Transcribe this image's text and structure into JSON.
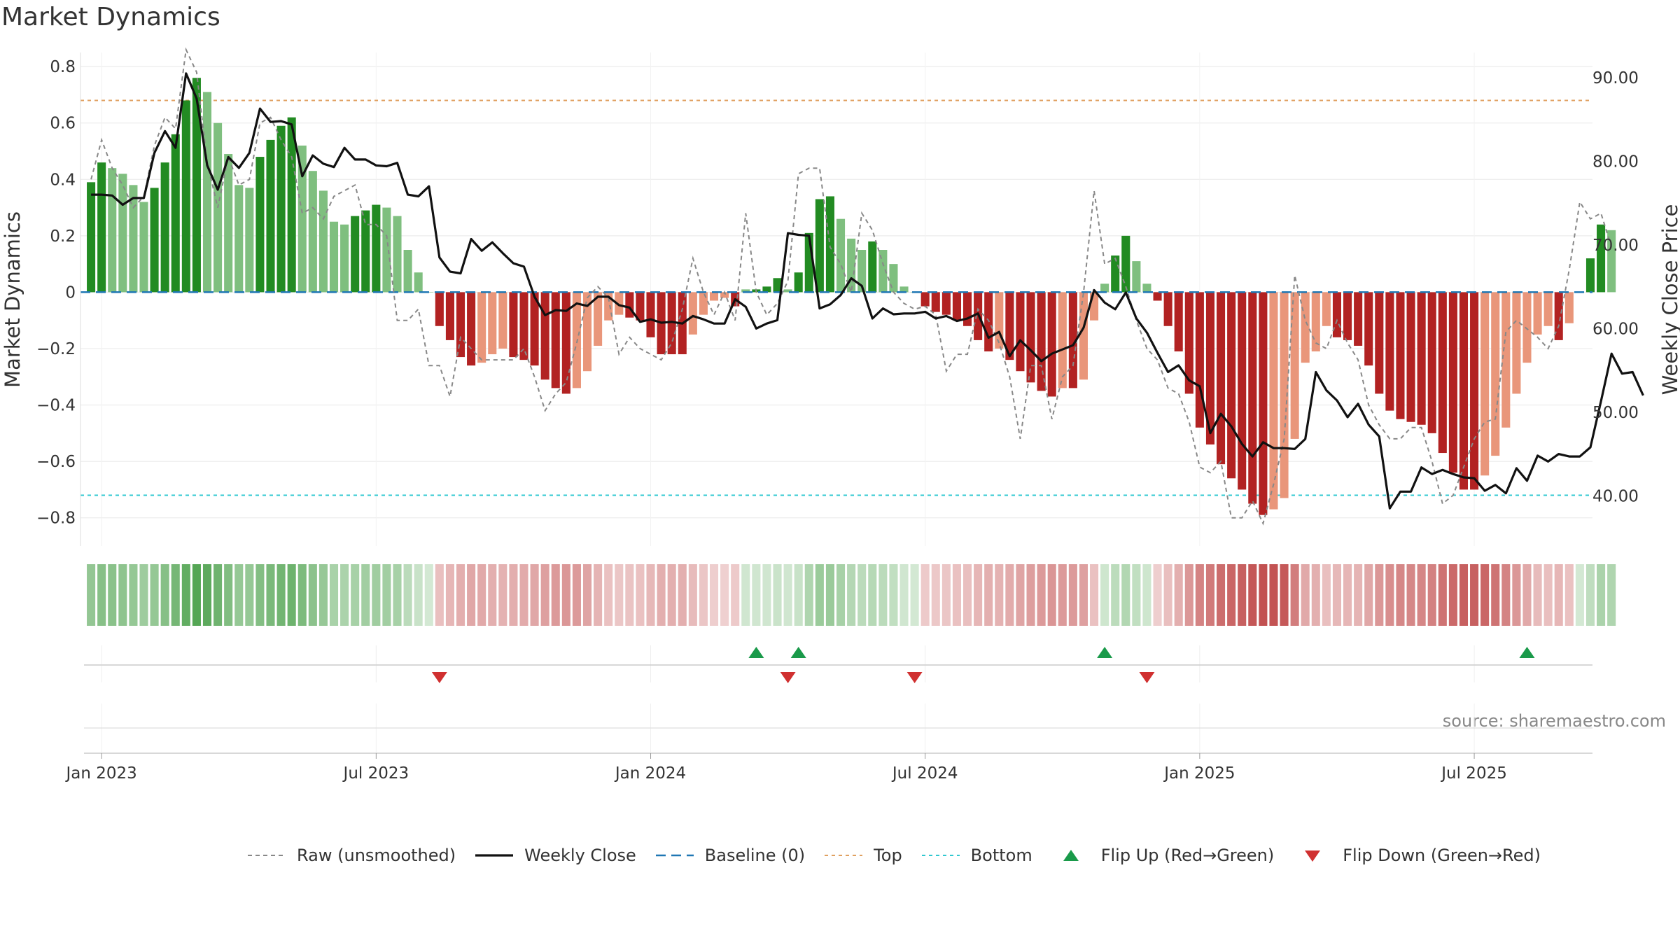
{
  "title": "Market Dynamics",
  "source": "source: sharemaestro.com",
  "chart_data": {
    "type": "bar",
    "title": "Market Dynamics",
    "ylabel": "Market Dynamics",
    "y2label": "Weekly Close Price",
    "ylim": [
      -0.9,
      0.85
    ],
    "y2lim": [
      34,
      93
    ],
    "yticks": [
      "0.8",
      "0.6",
      "0.4",
      "0.2",
      "0",
      "−0.2",
      "−0.4",
      "−0.6",
      "−0.8"
    ],
    "ytick_values": [
      0.8,
      0.6,
      0.4,
      0.2,
      0,
      -0.2,
      -0.4,
      -0.6,
      -0.8
    ],
    "y2ticks": [
      "90.00",
      "80.00",
      "70.00",
      "60.00",
      "50.00",
      "40.00"
    ],
    "y2tick_values": [
      90,
      80,
      70,
      60,
      50,
      40
    ],
    "xticks": [
      {
        "label": "Jan 2023",
        "week": 1
      },
      {
        "label": "Jul 2023",
        "week": 27
      },
      {
        "label": "Jan 2024",
        "week": 53
      },
      {
        "label": "Jul 2024",
        "week": 79
      },
      {
        "label": "Jan 2025",
        "week": 105
      },
      {
        "label": "Jul 2025",
        "week": 131
      }
    ],
    "x_start_week": -1,
    "x_end_week": 142.2,
    "top_threshold": 0.68,
    "bottom_threshold": -0.72,
    "baseline": 0,
    "momentum": [
      0.39,
      0.46,
      0.44,
      0.42,
      0.38,
      0.32,
      0.37,
      0.46,
      0.56,
      0.68,
      0.76,
      0.71,
      0.6,
      0.49,
      0.38,
      0.37,
      0.48,
      0.54,
      0.59,
      0.62,
      0.52,
      0.43,
      0.36,
      0.25,
      0.24,
      0.27,
      0.29,
      0.31,
      0.3,
      0.27,
      0.15,
      0.07,
      0.0,
      -0.12,
      -0.17,
      -0.23,
      -0.26,
      -0.25,
      -0.22,
      -0.2,
      -0.23,
      -0.24,
      -0.26,
      -0.31,
      -0.34,
      -0.36,
      -0.34,
      -0.28,
      -0.19,
      -0.1,
      -0.08,
      -0.09,
      -0.1,
      -0.16,
      -0.22,
      -0.22,
      -0.22,
      -0.15,
      -0.08,
      -0.03,
      -0.02,
      -0.05,
      0.01,
      0.01,
      0.02,
      0.05,
      0.01,
      0.07,
      0.21,
      0.33,
      0.34,
      0.26,
      0.19,
      0.15,
      0.18,
      0.15,
      0.1,
      0.02,
      0.0,
      -0.05,
      -0.07,
      -0.08,
      -0.1,
      -0.12,
      -0.17,
      -0.21,
      -0.2,
      -0.24,
      -0.28,
      -0.32,
      -0.35,
      -0.37,
      -0.34,
      -0.34,
      -0.31,
      -0.1,
      0.03,
      0.13,
      0.2,
      0.11,
      0.03,
      -0.03,
      -0.12,
      -0.21,
      -0.36,
      -0.48,
      -0.54,
      -0.61,
      -0.66,
      -0.7,
      -0.75,
      -0.79,
      -0.77,
      -0.73,
      -0.52,
      -0.25,
      -0.21,
      -0.12,
      -0.16,
      -0.17,
      -0.19,
      -0.26,
      -0.36,
      -0.42,
      -0.45,
      -0.46,
      -0.47,
      -0.5,
      -0.57,
      -0.64,
      -0.7,
      -0.7,
      -0.65,
      -0.58,
      -0.48,
      -0.36,
      -0.25,
      -0.15,
      -0.12,
      -0.17,
      -0.11,
      0.0,
      0.12,
      0.24,
      0.22
    ],
    "raw": [
      0.4,
      0.54,
      0.44,
      0.38,
      0.3,
      0.34,
      0.52,
      0.62,
      0.58,
      0.86,
      0.78,
      0.46,
      0.3,
      0.48,
      0.38,
      0.4,
      0.6,
      0.62,
      0.54,
      0.48,
      0.28,
      0.3,
      0.26,
      0.34,
      0.36,
      0.38,
      0.24,
      0.24,
      0.2,
      -0.1,
      -0.1,
      -0.06,
      -0.26,
      -0.26,
      -0.37,
      -0.16,
      -0.2,
      -0.24,
      -0.24,
      -0.24,
      -0.24,
      -0.2,
      -0.3,
      -0.42,
      -0.36,
      -0.32,
      -0.18,
      -0.02,
      0.02,
      -0.02,
      -0.22,
      -0.16,
      -0.2,
      -0.22,
      -0.24,
      -0.18,
      -0.06,
      0.12,
      0.0,
      -0.08,
      0.0,
      -0.1,
      0.28,
      0.0,
      -0.08,
      -0.04,
      0.04,
      0.42,
      0.44,
      0.44,
      0.16,
      0.1,
      0.0,
      0.28,
      0.22,
      0.1,
      0.0,
      -0.04,
      -0.06,
      -0.05,
      -0.08,
      -0.28,
      -0.22,
      -0.22,
      -0.06,
      -0.1,
      -0.18,
      -0.3,
      -0.52,
      -0.26,
      -0.26,
      -0.45,
      -0.3,
      -0.26,
      0.0,
      0.36,
      0.1,
      0.12,
      0.02,
      -0.1,
      -0.2,
      -0.24,
      -0.34,
      -0.36,
      -0.46,
      -0.62,
      -0.64,
      -0.6,
      -0.8,
      -0.8,
      -0.74,
      -0.82,
      -0.68,
      -0.52,
      0.06,
      -0.1,
      -0.18,
      -0.2,
      -0.1,
      -0.18,
      -0.24,
      -0.4,
      -0.47,
      -0.52,
      -0.52,
      -0.48,
      -0.48,
      -0.6,
      -0.75,
      -0.72,
      -0.62,
      -0.52,
      -0.46,
      -0.45,
      -0.14,
      -0.1,
      -0.13,
      -0.16,
      -0.2,
      -0.12,
      0.08,
      0.32,
      0.26,
      0.28,
      0.16
    ],
    "close": [
      76,
      76,
      75.9,
      74.8,
      75.6,
      75.6,
      81,
      83.6,
      81.6,
      90.5,
      87.5,
      79.5,
      76.6,
      80.5,
      79.2,
      81,
      86.3,
      84.7,
      84.8,
      84.4,
      78.2,
      80.7,
      79.7,
      79.3,
      81.6,
      80.2,
      80.2,
      79.5,
      79.4,
      79.8,
      76,
      75.8,
      77,
      68.5,
      66.8,
      66.6,
      70.7,
      69.3,
      70.3,
      69,
      67.8,
      67.4,
      63.8,
      61.6,
      62.2,
      62.1,
      63,
      62.7,
      63.8,
      63.8,
      62.8,
      62.5,
      60.8,
      61.1,
      60.7,
      60.8,
      60.6,
      61.5,
      61.1,
      60.6,
      60.6,
      63.5,
      62.6,
      60,
      60.6,
      61,
      71.4,
      71.2,
      71.1,
      62.4,
      62.9,
      64,
      66,
      65.1,
      61.2,
      62.4,
      61.7,
      61.8,
      61.8,
      62,
      61.2,
      61.5,
      60.9,
      61.2,
      61.8,
      58.9,
      59.6,
      56.7,
      58.6,
      57.4,
      56.1,
      57,
      57.5,
      58,
      60.1,
      64.6,
      63.1,
      62.3,
      64.3,
      61.2,
      59.5,
      57.1,
      54.8,
      55.6,
      53.8,
      53.1,
      47.5,
      49.8,
      48.3,
      46.2,
      44.7,
      46.4,
      45.7,
      45.7,
      45.6,
      46.8,
      54.8,
      52.6,
      51.4,
      49.4,
      51,
      48.5,
      47.1,
      38.5,
      40.5,
      40.5,
      43.4,
      42.6,
      43.1,
      42.6,
      42.2,
      42.1,
      40.6,
      41.3,
      40.3,
      43.3,
      41.8,
      44.8,
      44.1,
      45,
      44.7,
      44.7,
      45.8,
      51.3,
      57,
      54.6,
      54.8,
      52
    ]
  },
  "flips": {
    "up_weeks": [
      63,
      67,
      96,
      136
    ],
    "down_weeks": [
      33,
      66,
      78,
      100
    ]
  },
  "legend": [
    {
      "label": "Raw (unsmoothed)",
      "kind": "dashed-gray"
    },
    {
      "label": "Weekly Close",
      "kind": "solid-black"
    },
    {
      "label": "Baseline (0)",
      "kind": "dashed-blue"
    },
    {
      "label": "Top",
      "kind": "dotted-orange"
    },
    {
      "label": "Bottom",
      "kind": "dotted-cyan"
    },
    {
      "label": "Flip Up (Red→Green)",
      "kind": "triangle-up"
    },
    {
      "label": "Flip Down (Green→Red)",
      "kind": "triangle-down"
    }
  ],
  "colors": {
    "green_strong": "#228b22",
    "green_light": "#7fbf7f",
    "red_strong": "#b22222",
    "red_light": "#e9967a",
    "close_line": "#111111",
    "raw_line": "#888888",
    "baseline": "#1f77b4",
    "top": "#e0a060",
    "bottom": "#30c8d0",
    "flip_up": "#1a9a4a",
    "flip_down": "#d03030",
    "grid": "#e8e8e8"
  }
}
